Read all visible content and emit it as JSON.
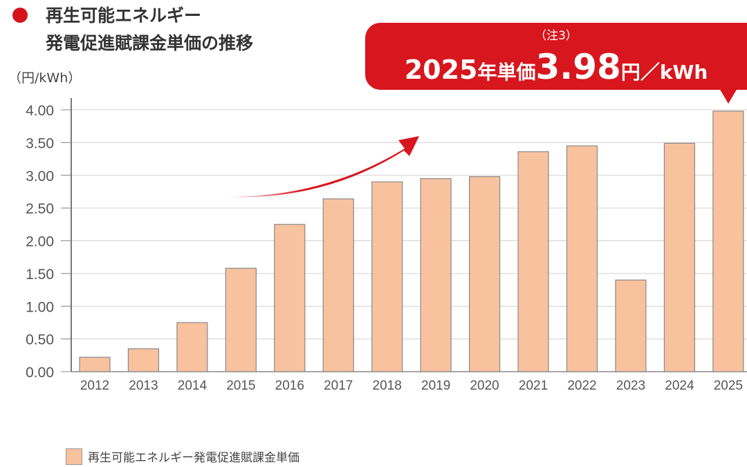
{
  "title_line1": "再生可能エネルギー",
  "title_line2": "発電促進賦課金単価の推移",
  "callout": {
    "note": "（注3）",
    "year": "2025",
    "year_suffix": "年単価",
    "value": "3.98",
    "unit": "円／kWh"
  },
  "colors": {
    "bar": "#f8c29e",
    "accent": "#d7161d"
  },
  "chart_data": {
    "type": "bar",
    "ylabel": "（円/kWh）",
    "ylim": [
      0,
      4
    ],
    "yticks": [
      "0.00",
      "0.50",
      "1.00",
      "1.50",
      "2.00",
      "2.50",
      "3.00",
      "3.50",
      "4.00"
    ],
    "grid": true,
    "legend_position": "bottom-left",
    "categories": [
      "2012",
      "2013",
      "2014",
      "2015",
      "2016",
      "2017",
      "2018",
      "2019",
      "2020",
      "2021",
      "2022",
      "2023",
      "2024",
      "2025"
    ],
    "series": [
      {
        "name": "再生可能エネルギー発電促進賦課金単価",
        "values": [
          0.22,
          0.35,
          0.75,
          1.58,
          2.25,
          2.64,
          2.9,
          2.95,
          2.98,
          3.36,
          3.45,
          1.4,
          3.49,
          3.98
        ]
      }
    ]
  }
}
